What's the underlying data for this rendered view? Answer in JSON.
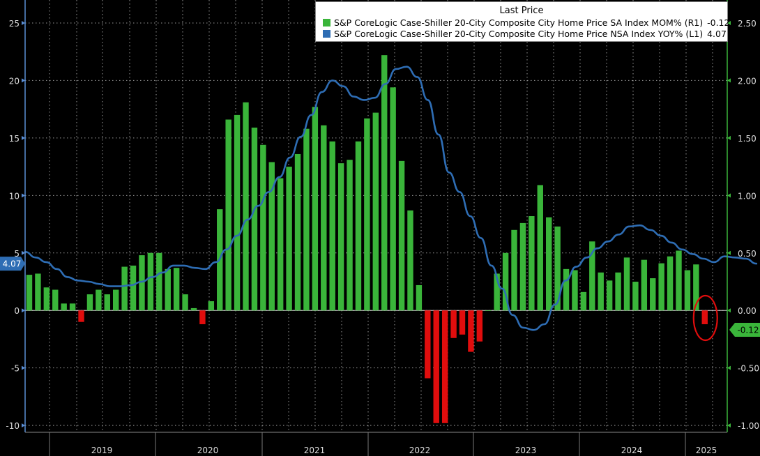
{
  "legend": {
    "title": "Last Price",
    "items": [
      {
        "label": "S&P CoreLogic Case-Shiller 20-City Composite City Home Price SA Index MOM%",
        "axis": "(R1)",
        "value": "-0.12",
        "color": "#3ab53a"
      },
      {
        "label": "S&P CoreLogic Case-Shiller 20-City Composite City Home Price NSA Index YOY%",
        "axis": "(L1)",
        "value": "4.07",
        "color": "#2e6db4"
      }
    ]
  },
  "chart_data": {
    "type": "bar+line",
    "x_year_labels": [
      "2019",
      "2020",
      "2021",
      "2022",
      "2023",
      "2024",
      "2025"
    ],
    "left_axis": {
      "ylim": [
        -10.6,
        27.0
      ],
      "ticks": [
        "25",
        "20",
        "15",
        "10",
        "5",
        "0",
        "-5",
        "-10"
      ],
      "last_value_label": "4.07"
    },
    "right_axis": {
      "ylim": [
        -1.06,
        2.7
      ],
      "ticks": [
        "2.50",
        "2.00",
        "1.50",
        "1.00",
        "0.50",
        "0.00",
        "-0.50",
        "-1.00"
      ],
      "last_value_label": "-0.12"
    },
    "grid": true,
    "series": [
      {
        "name": "S&P CoreLogic Case-Shiller 20-City Composite City Home Price SA Index MOM%",
        "axis": "R1",
        "kind": "bar",
        "positive_color": "#3ab53a",
        "negative_color": "#e00d0d",
        "values": [
          0.31,
          0.32,
          0.2,
          0.18,
          0.06,
          0.06,
          -0.1,
          0.14,
          0.18,
          0.14,
          0.18,
          0.38,
          0.39,
          0.48,
          0.5,
          0.5,
          0.36,
          0.37,
          0.14,
          0.02,
          -0.12,
          0.08,
          0.88,
          1.66,
          1.7,
          1.81,
          1.59,
          1.44,
          1.29,
          1.15,
          1.25,
          1.36,
          1.58,
          1.77,
          1.61,
          1.47,
          1.28,
          1.31,
          1.47,
          1.67,
          1.72,
          2.22,
          1.94,
          1.3,
          0.87,
          0.22,
          -0.59,
          -0.98,
          -0.98,
          -0.24,
          -0.21,
          -0.36,
          -0.27,
          0.0,
          0.32,
          0.5,
          0.7,
          0.76,
          0.82,
          1.09,
          0.81,
          0.73,
          0.36,
          0.35,
          0.16,
          0.6,
          0.33,
          0.26,
          0.33,
          0.46,
          0.25,
          0.44,
          0.28,
          0.41,
          0.47,
          0.52,
          0.35,
          0.4,
          -0.12
        ]
      },
      {
        "name": "S&P CoreLogic Case-Shiller 20-City Composite City Home Price NSA Index YOY%",
        "axis": "L1",
        "kind": "line",
        "color": "#2e6db4",
        "values": [
          5.1,
          4.6,
          4.2,
          3.6,
          2.9,
          2.6,
          2.5,
          2.3,
          2.1,
          2.1,
          2.2,
          2.5,
          2.9,
          3.3,
          3.9,
          3.9,
          3.7,
          3.6,
          4.2,
          5.3,
          6.5,
          7.9,
          9.1,
          10.3,
          11.6,
          13.3,
          15.1,
          17.0,
          19.0,
          20.0,
          19.5,
          18.6,
          18.3,
          18.5,
          19.7,
          21.0,
          21.2,
          20.3,
          18.3,
          15.3,
          12.0,
          10.3,
          8.2,
          6.3,
          3.9,
          1.9,
          -0.4,
          -1.5,
          -1.7,
          -1.2,
          0.5,
          2.6,
          3.8,
          4.6,
          5.4,
          6.0,
          6.6,
          7.3,
          7.4,
          7.0,
          6.5,
          5.9,
          5.3,
          4.9,
          4.5,
          4.2,
          4.7,
          4.6,
          4.5,
          4.07
        ]
      }
    ]
  }
}
